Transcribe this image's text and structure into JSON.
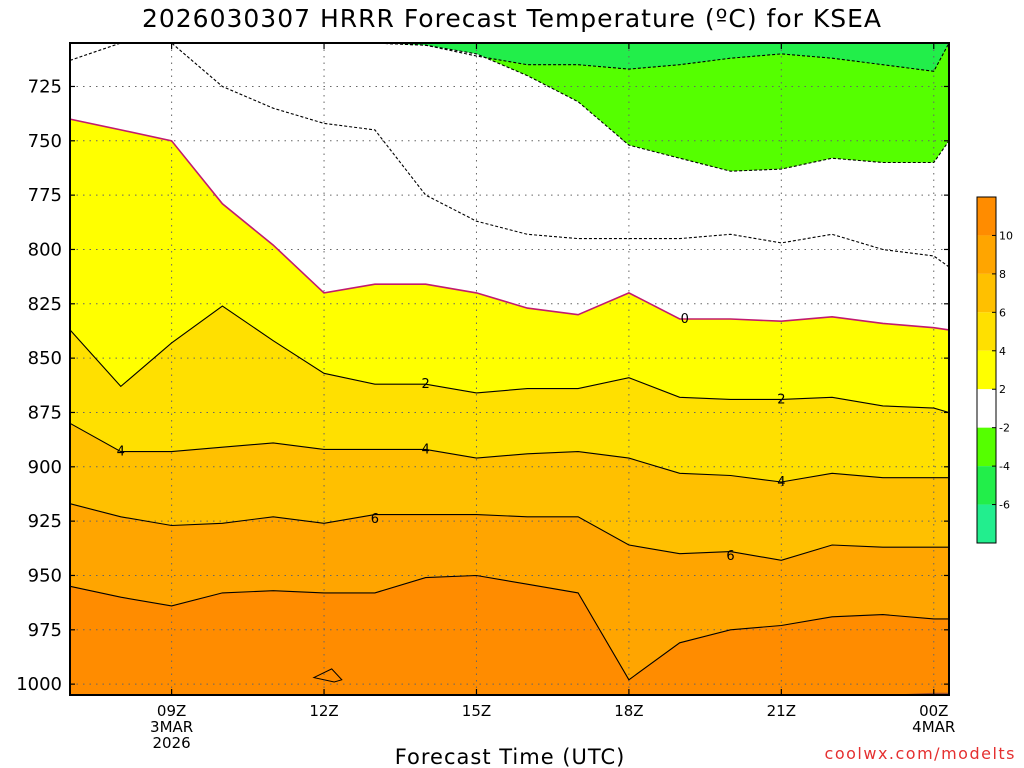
{
  "chart_data": {
    "type": "contour",
    "title": "2026030307 HRRR Forecast Temperature (ºC) for KSEA",
    "xlabel": "Forecast Time (UTC)",
    "ylabel": "",
    "credit": "coolwx.com/modelts",
    "x_hours": [
      7,
      8,
      9,
      10,
      11,
      12,
      13,
      14,
      15,
      16,
      17,
      18,
      19,
      20,
      21,
      22,
      23,
      24,
      24.3
    ],
    "x_tick_labels": [
      {
        "hour": 9,
        "lines": [
          "09Z",
          "3MAR",
          "2026"
        ]
      },
      {
        "hour": 12,
        "lines": [
          "12Z"
        ]
      },
      {
        "hour": 15,
        "lines": [
          "15Z"
        ]
      },
      {
        "hour": 18,
        "lines": [
          "18Z"
        ]
      },
      {
        "hour": 21,
        "lines": [
          "21Z"
        ]
      },
      {
        "hour": 24,
        "lines": [
          "00Z",
          "4MAR"
        ]
      }
    ],
    "y_axis": {
      "units": "hPa",
      "range": [
        1005,
        705
      ],
      "ticks": [
        725,
        750,
        775,
        800,
        825,
        850,
        875,
        900,
        925,
        950,
        975,
        1000
      ]
    },
    "surface_pressure": [
      1005,
      1005,
      1005,
      1005,
      1005,
      1005,
      1005,
      1005,
      1005,
      1005,
      1005,
      1005,
      1005,
      1005,
      1005,
      1005,
      1005,
      1004,
      1004
    ],
    "levels": [
      {
        "name": "-6",
        "pressure": [
          705,
          705,
          705,
          705,
          705,
          705,
          705,
          705,
          705,
          705,
          705,
          705,
          705,
          705,
          705,
          705,
          705,
          705,
          705
        ]
      },
      {
        "name": "-4",
        "pressure": [
          705,
          705,
          705,
          705,
          705,
          705,
          705,
          706,
          711,
          715,
          715,
          717,
          715,
          712,
          710,
          712,
          715,
          718,
          705
        ]
      },
      {
        "name": "-2",
        "pressure": [
          705,
          705,
          705,
          705,
          705,
          705,
          705,
          706,
          710,
          720,
          732,
          752,
          758,
          764,
          763,
          758,
          760,
          760,
          750
        ]
      },
      {
        "name": "-2",
        "pressure": [
          713,
          705,
          705,
          725,
          735,
          742,
          745,
          775,
          787,
          793,
          795,
          795,
          795,
          793,
          797,
          793,
          800,
          803,
          808
        ]
      },
      {
        "name": "0",
        "pressure": [
          740,
          745,
          750,
          779,
          798,
          820,
          816,
          816,
          820,
          827,
          830,
          820,
          832,
          832,
          833,
          831,
          834,
          836,
          837
        ]
      },
      {
        "name": "2",
        "pressure": [
          837,
          863,
          843,
          826,
          842,
          857,
          862,
          862,
          866,
          864,
          864,
          859,
          868,
          869,
          869,
          868,
          872,
          873,
          875
        ]
      },
      {
        "name": "4",
        "pressure": [
          880,
          893,
          893,
          891,
          889,
          892,
          892,
          892,
          896,
          894,
          893,
          896,
          903,
          904,
          907,
          903,
          905,
          905,
          905
        ]
      },
      {
        "name": "6",
        "pressure": [
          917,
          923,
          927,
          926,
          923,
          926,
          922,
          922,
          922,
          923,
          923,
          936,
          940,
          939,
          943,
          936,
          937,
          937,
          937
        ]
      },
      {
        "name": "8",
        "pressure": [
          955,
          960,
          964,
          958,
          957,
          958,
          958,
          951,
          950,
          954,
          958,
          998,
          981,
          975,
          973,
          969,
          968,
          970,
          970
        ]
      },
      {
        "name": "10",
        "pressure": [
          1005,
          1005,
          1005,
          1005,
          1005,
          1005,
          1005,
          1005,
          1005,
          1005,
          1005,
          1005,
          1005,
          1005,
          1005,
          1005,
          1005,
          1005,
          1005
        ]
      }
    ],
    "small_features": [
      {
        "name": "10-blob",
        "x_hours": [
          11.8,
          12.15,
          12.35,
          12.2,
          11.8
        ],
        "pressure": [
          997,
          993,
          998,
          999,
          997
        ]
      }
    ],
    "contour_labels": [
      {
        "text": "0",
        "hour": 19.1,
        "pressure": 832
      },
      {
        "text": "2",
        "hour": 14.0,
        "pressure": 862
      },
      {
        "text": "2",
        "hour": 21.0,
        "pressure": 869
      },
      {
        "text": "4",
        "hour": 8.0,
        "pressure": 893
      },
      {
        "text": "4",
        "hour": 14.0,
        "pressure": 892
      },
      {
        "text": "4",
        "hour": 21.0,
        "pressure": 907
      },
      {
        "text": "6",
        "hour": 13.0,
        "pressure": 924
      },
      {
        "text": "6",
        "hour": 20.0,
        "pressure": 941
      }
    ],
    "colorbar": {
      "segments": [
        {
          "name": "-8 to -6",
          "color": "#22ee8e"
        },
        {
          "name": "-6 to -4",
          "color": "#22ee4a"
        },
        {
          "name": "-4 to -2",
          "color": "#55ff00"
        },
        {
          "name": "-2 to 2",
          "color": "#ffffff"
        },
        {
          "name": "2 to 4",
          "color": "#ffff00"
        },
        {
          "name": "4 to 6",
          "color": "#ffe000"
        },
        {
          "name": "6 to 8",
          "color": "#ffc000"
        },
        {
          "name": "8 to 10",
          "color": "#ffa500"
        },
        {
          "name": "10 to 12",
          "color": "#ff8c00"
        }
      ],
      "tick_labels": [
        "-6",
        "-4",
        "-2",
        "2",
        "4",
        "6",
        "8",
        "10"
      ]
    },
    "colors": {
      "frozen_contour": "#c21a6e",
      "ground": "#a0522d",
      "grid": "#666666"
    }
  }
}
